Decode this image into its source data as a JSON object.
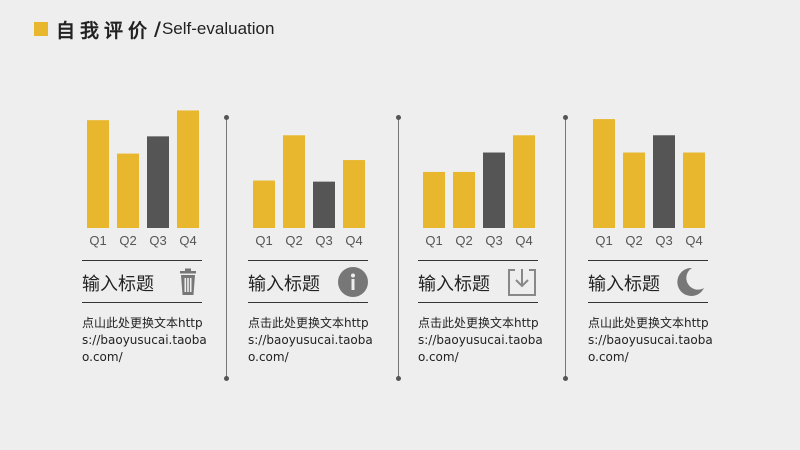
{
  "header": {
    "title_cn": "自我评价",
    "slash": "/",
    "title_en": "Self-evaluation"
  },
  "colors": {
    "accent": "#e8b72d",
    "dark": "#555555",
    "icon": "#777777"
  },
  "chart_data": [
    {
      "type": "bar",
      "categories": [
        "Q1",
        "Q2",
        "Q3",
        "Q4"
      ],
      "values": [
        100,
        69,
        85,
        109
      ],
      "highlight_index": 2,
      "ylim": [
        0,
        115
      ]
    },
    {
      "type": "bar",
      "categories": [
        "Q1",
        "Q2",
        "Q3",
        "Q4"
      ],
      "values": [
        44,
        86,
        43,
        63
      ],
      "highlight_index": 2,
      "ylim": [
        0,
        115
      ]
    },
    {
      "type": "bar",
      "categories": [
        "Q1",
        "Q2",
        "Q3",
        "Q4"
      ],
      "values": [
        52,
        52,
        70,
        86
      ],
      "highlight_index": 2,
      "ylim": [
        0,
        115
      ]
    },
    {
      "type": "bar",
      "categories": [
        "Q1",
        "Q2",
        "Q3",
        "Q4"
      ],
      "values": [
        101,
        70,
        86,
        70
      ],
      "highlight_index": 2,
      "ylim": [
        0,
        115
      ]
    }
  ],
  "panels": [
    {
      "heading": "输入标题",
      "icon": "trash-icon",
      "text": "点山此处更换文本https://baoyusucai.taobao.com/"
    },
    {
      "heading": "输入标题",
      "icon": "info-icon",
      "text": "点击此处更换文本https://baoyusucai.taobao.com/"
    },
    {
      "heading": "输入标题",
      "icon": "download-icon",
      "text": "点击此处更换文本https://baoyusucai.taobao.com/"
    },
    {
      "heading": "输入标题",
      "icon": "moon-icon",
      "text": "点山此处更换文本https://baoyusucai.taobao.com/"
    }
  ]
}
